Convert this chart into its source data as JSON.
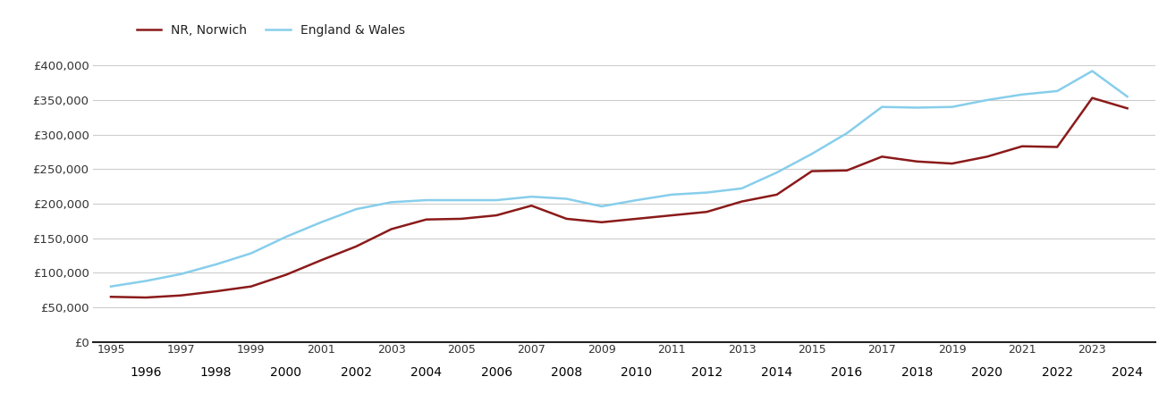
{
  "norwich_years": [
    1995,
    1996,
    1997,
    1998,
    1999,
    2000,
    2001,
    2002,
    2003,
    2004,
    2005,
    2006,
    2007,
    2008,
    2009,
    2010,
    2011,
    2012,
    2013,
    2014,
    2015,
    2016,
    2017,
    2018,
    2019,
    2020,
    2021,
    2022,
    2023,
    2024
  ],
  "norwich_values": [
    65000,
    64000,
    67000,
    73000,
    80000,
    97000,
    118000,
    138000,
    163000,
    177000,
    178000,
    183000,
    197000,
    178000,
    173000,
    178000,
    183000,
    188000,
    203000,
    213000,
    247000,
    248000,
    268000,
    261000,
    258000,
    268000,
    283000,
    282000,
    353000,
    338000
  ],
  "ew_years": [
    1995,
    1996,
    1997,
    1998,
    1999,
    2000,
    2001,
    2002,
    2003,
    2004,
    2005,
    2006,
    2007,
    2008,
    2009,
    2010,
    2011,
    2012,
    2013,
    2014,
    2015,
    2016,
    2017,
    2018,
    2019,
    2020,
    2021,
    2022,
    2023,
    2024
  ],
  "ew_values": [
    80000,
    88000,
    98000,
    112000,
    128000,
    152000,
    173000,
    192000,
    202000,
    205000,
    205000,
    205000,
    210000,
    207000,
    196000,
    205000,
    213000,
    216000,
    222000,
    245000,
    272000,
    302000,
    340000,
    339000,
    340000,
    350000,
    358000,
    363000,
    392000,
    355000
  ],
  "norwich_color": "#8B1A1A",
  "ew_color": "#87CEEB",
  "norwich_label": "NR, Norwich",
  "ew_label": "England & Wales",
  "ylim": [
    0,
    425000
  ],
  "yticks": [
    0,
    50000,
    100000,
    150000,
    200000,
    250000,
    300000,
    350000,
    400000
  ],
  "ytick_labels": [
    "£0",
    "£50,000",
    "£100,000",
    "£150,000",
    "£200,000",
    "£250,000",
    "£300,000",
    "£350,000",
    "£400,000"
  ],
  "xticks_top": [
    1995,
    1997,
    1999,
    2001,
    2003,
    2005,
    2007,
    2009,
    2011,
    2013,
    2015,
    2017,
    2019,
    2021,
    2023
  ],
  "xticks_bottom": [
    1996,
    1998,
    2000,
    2002,
    2004,
    2006,
    2008,
    2010,
    2012,
    2014,
    2016,
    2018,
    2020,
    2022,
    2024
  ],
  "line_width": 1.8,
  "background_color": "#ffffff",
  "grid_color": "#cccccc"
}
